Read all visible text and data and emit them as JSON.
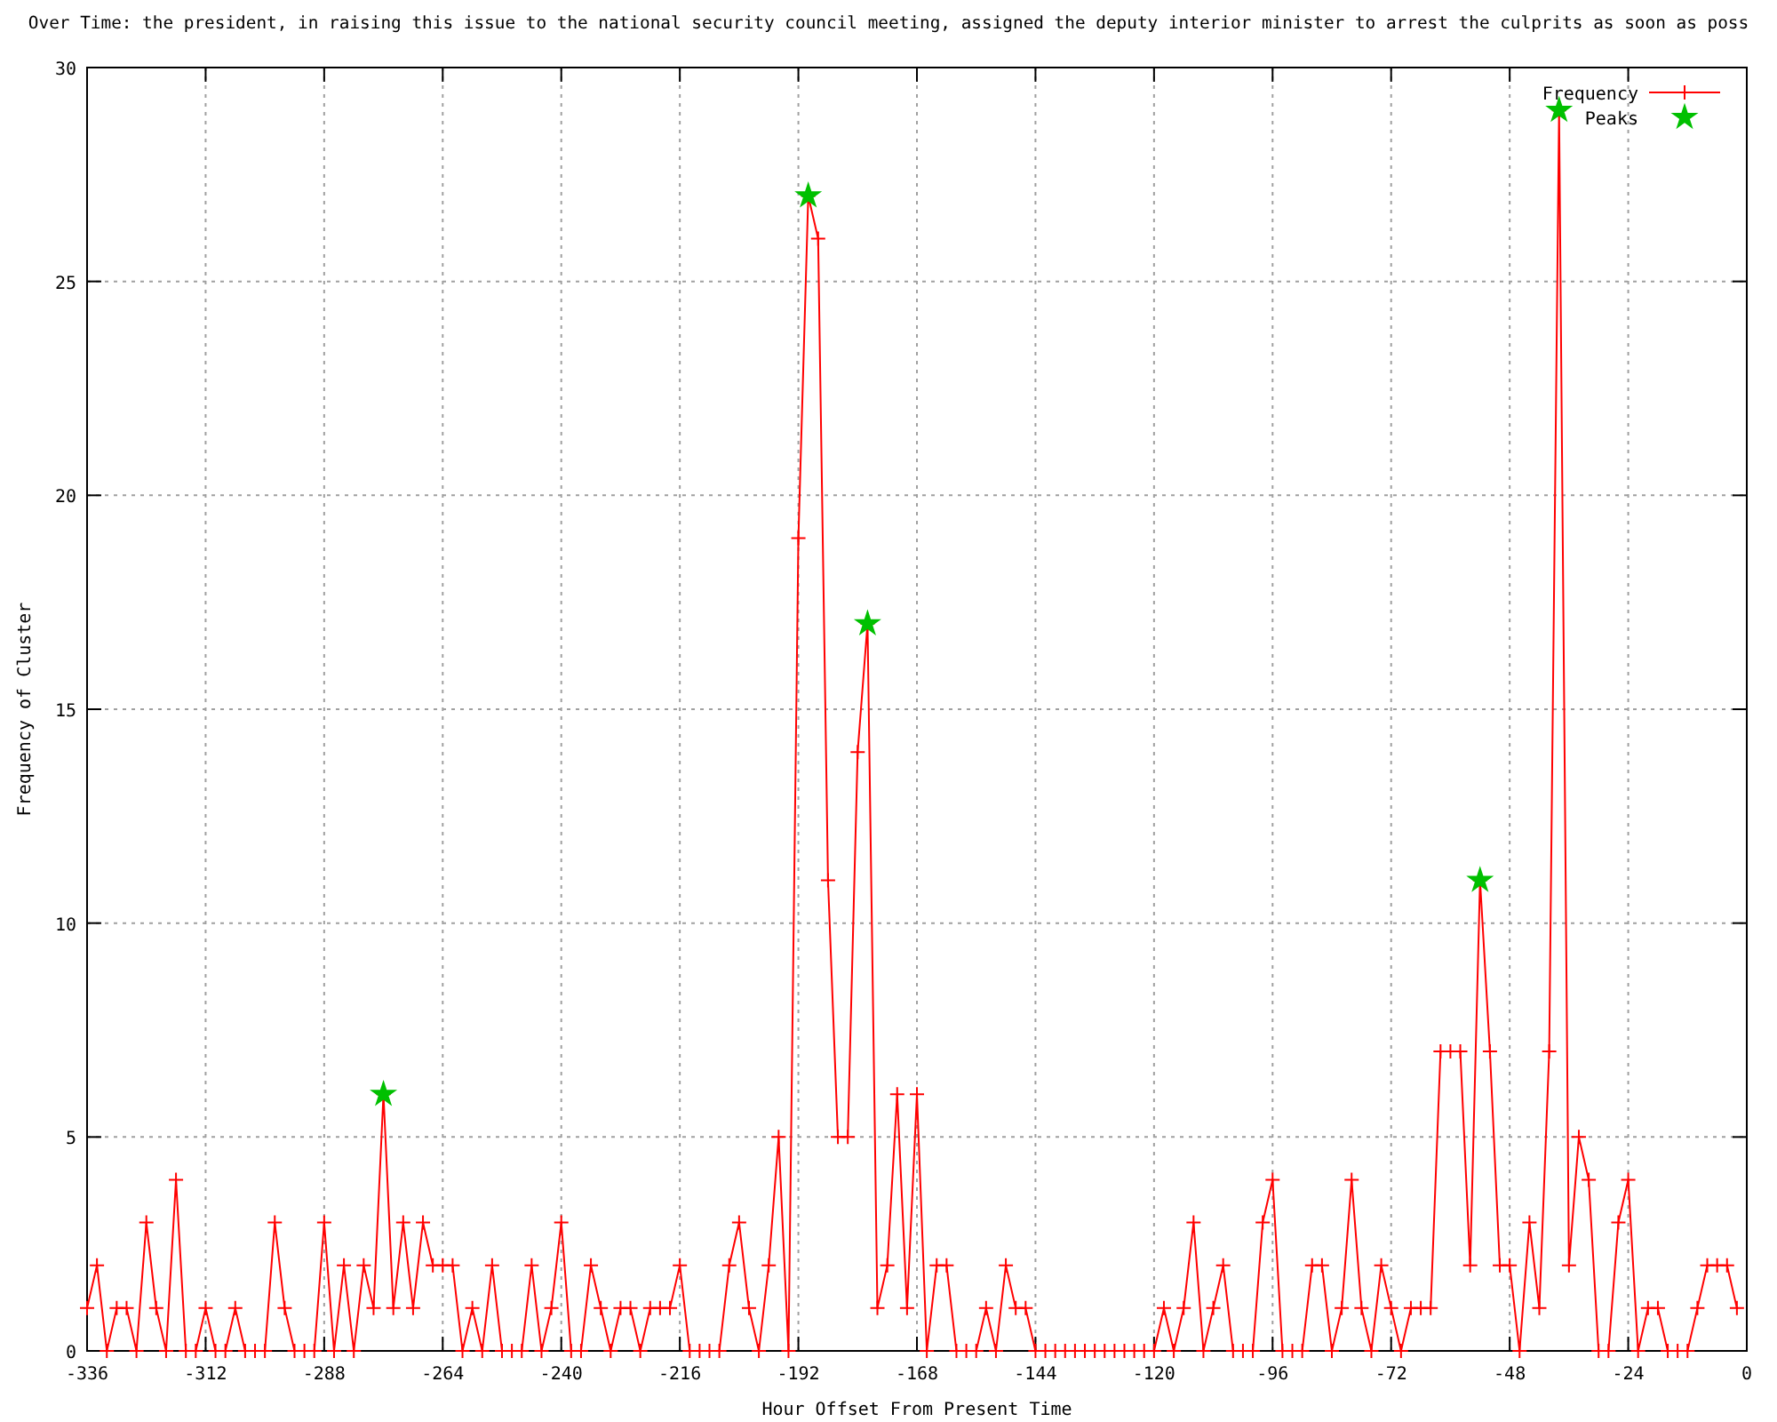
{
  "chart_data": {
    "type": "line",
    "title": "Over Time: the president, in raising this issue to the national security council meeting, assigned the deputy interior minister to arrest the culprits as soon as poss",
    "xlabel": "Hour Offset From Present Time",
    "ylabel": "Frequency of Cluster",
    "x": [
      -336,
      -334,
      -332,
      -330,
      -328,
      -326,
      -324,
      -322,
      -320,
      -318,
      -316,
      -314,
      -312,
      -310,
      -308,
      -306,
      -304,
      -302,
      -300,
      -298,
      -296,
      -294,
      -292,
      -290,
      -288,
      -286,
      -284,
      -282,
      -280,
      -278,
      -276,
      -274,
      -272,
      -270,
      -268,
      -266,
      -264,
      -262,
      -260,
      -258,
      -256,
      -254,
      -252,
      -250,
      -248,
      -246,
      -244,
      -242,
      -240,
      -238,
      -236,
      -234,
      -232,
      -230,
      -228,
      -226,
      -224,
      -222,
      -220,
      -218,
      -216,
      -214,
      -212,
      -210,
      -208,
      -206,
      -204,
      -202,
      -200,
      -198,
      -196,
      -194,
      -192,
      -190,
      -188,
      -186,
      -184,
      -182,
      -180,
      -178,
      -176,
      -174,
      -172,
      -170,
      -168,
      -166,
      -164,
      -162,
      -160,
      -158,
      -156,
      -154,
      -152,
      -150,
      -148,
      -146,
      -144,
      -142,
      -140,
      -138,
      -136,
      -134,
      -132,
      -130,
      -128,
      -126,
      -124,
      -122,
      -120,
      -118,
      -116,
      -114,
      -112,
      -110,
      -108,
      -106,
      -104,
      -102,
      -100,
      -98,
      -96,
      -94,
      -92,
      -90,
      -88,
      -86,
      -84,
      -82,
      -80,
      -78,
      -76,
      -74,
      -72,
      -70,
      -68,
      -66,
      -64,
      -62,
      -60,
      -58,
      -56,
      -54,
      -52,
      -50,
      -48,
      -46,
      -44,
      -42,
      -40,
      -38,
      -36,
      -34,
      -32,
      -30,
      -28,
      -26,
      -24,
      -22,
      -20,
      -18,
      -16,
      -14,
      -12,
      -10,
      -8,
      -6,
      -4,
      -2
    ],
    "series": [
      {
        "name": "Frequency",
        "color": "#ff0000",
        "marker": "cross",
        "values": [
          1,
          2,
          0,
          1,
          1,
          0,
          3,
          1,
          0,
          4,
          0,
          0,
          1,
          0,
          0,
          1,
          0,
          0,
          0,
          3,
          1,
          0,
          0,
          0,
          3,
          0,
          2,
          0,
          2,
          1,
          6,
          1,
          3,
          1,
          3,
          2,
          2,
          2,
          0,
          1,
          0,
          2,
          0,
          0,
          0,
          2,
          0,
          1,
          3,
          0,
          0,
          2,
          1,
          0,
          1,
          1,
          0,
          1,
          1,
          1,
          2,
          0,
          0,
          0,
          0,
          2,
          3,
          1,
          0,
          2,
          5,
          0,
          19,
          27,
          26,
          11,
          5,
          5,
          14,
          17,
          1,
          2,
          6,
          1,
          6,
          0,
          2,
          2,
          0,
          0,
          0,
          1,
          0,
          2,
          1,
          1,
          0,
          0,
          0,
          0,
          0,
          0,
          0,
          0,
          0,
          0,
          0,
          0,
          0,
          1,
          0,
          1,
          3,
          0,
          1,
          2,
          0,
          0,
          0,
          3,
          4,
          0,
          0,
          0,
          2,
          2,
          0,
          1,
          4,
          1,
          0,
          2,
          1,
          0,
          1,
          1,
          1,
          7,
          7,
          7,
          2,
          11,
          7,
          2,
          2,
          0,
          3,
          1,
          7,
          29,
          2,
          5,
          4,
          0,
          0,
          3,
          4,
          0,
          1,
          1,
          0,
          0,
          0,
          1,
          2,
          2,
          2,
          1
        ]
      },
      {
        "name": "Peaks",
        "type": "scatter",
        "color": "#00c000",
        "marker": "star",
        "x": [
          -276,
          -190,
          -178,
          -54,
          -38
        ],
        "values": [
          6,
          27,
          17,
          11,
          29
        ]
      }
    ],
    "xlim": [
      -336,
      0
    ],
    "xticks": [
      -336,
      -312,
      -288,
      -264,
      -240,
      -216,
      -192,
      -168,
      -144,
      -120,
      -96,
      -72,
      -48,
      -24,
      0
    ],
    "ylim": [
      0,
      30
    ],
    "yticks": [
      0,
      5,
      10,
      15,
      20,
      25,
      30
    ],
    "grid": true,
    "legend": "top right",
    "line_style": "solid"
  }
}
